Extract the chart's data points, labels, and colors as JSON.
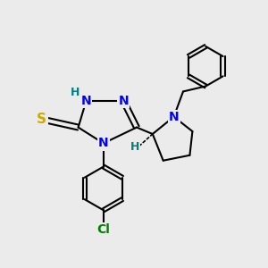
{
  "background_color": "#ebebeb",
  "atom_colors": {
    "N": "#0000ff",
    "S": "#ccaa00",
    "Cl": "#008000",
    "C": "#000000",
    "H": "#008080"
  },
  "bond_color": "#000000",
  "bond_width": 1.5,
  "figsize": [
    3.0,
    3.0
  ],
  "dpi": 100
}
